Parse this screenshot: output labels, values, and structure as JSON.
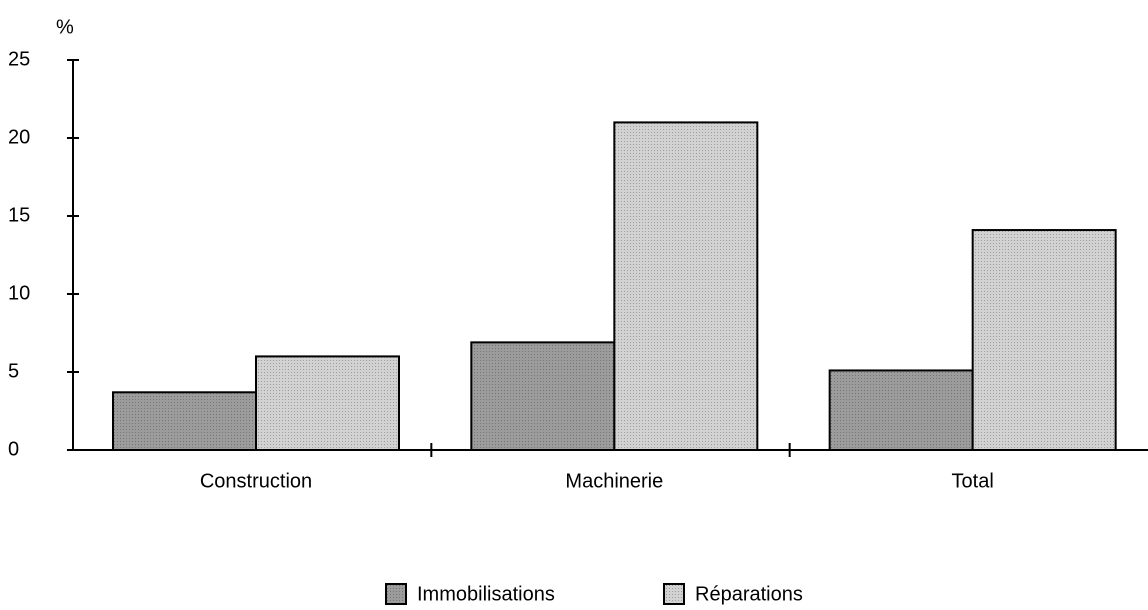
{
  "chart_data": {
    "type": "bar",
    "y_label": "%",
    "categories": [
      "Construction",
      "Machinerie",
      "Total"
    ],
    "series": [
      {
        "name": "Immobilisations",
        "color": "#9c9c9c",
        "values": [
          3.7,
          6.9,
          5.1
        ]
      },
      {
        "name": "Réparations",
        "color": "#d2d2d2",
        "values": [
          6.0,
          21.0,
          14.1
        ]
      }
    ],
    "ylim": [
      0,
      25
    ],
    "yticks": [
      0,
      5,
      10,
      15,
      20,
      25
    ]
  }
}
